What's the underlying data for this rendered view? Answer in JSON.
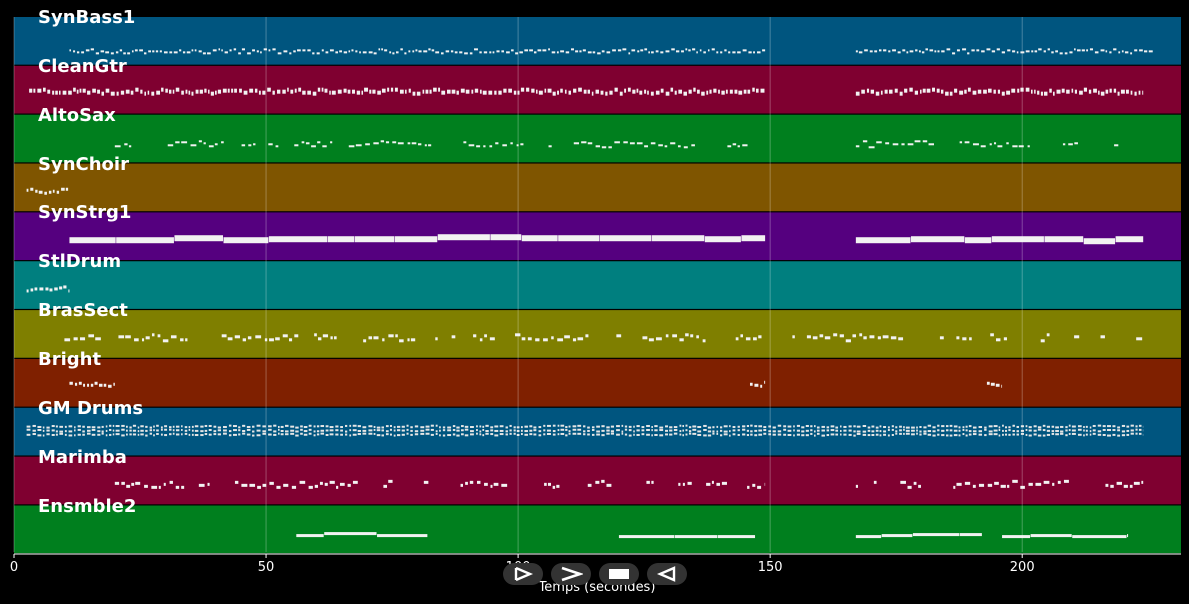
{
  "chart_data": {
    "type": "piano-roll",
    "xlabel": "Temps (secondes)",
    "xlim": [
      0,
      231.5
    ],
    "xticks": [
      0,
      50,
      100,
      150,
      200
    ],
    "grid": true,
    "tracks": [
      {
        "name": "SynBass1",
        "color": "#00557f",
        "segments": [
          [
            11,
            149
          ],
          [
            167,
            226
          ]
        ],
        "level": 0.3,
        "style": "dense",
        "height": 2
      },
      {
        "name": "CleanGtr",
        "color": "#7f0030",
        "segments": [
          [
            3,
            149
          ],
          [
            167,
            224
          ]
        ],
        "level": 0.5,
        "style": "dense",
        "height": 4
      },
      {
        "name": "AltoSax",
        "color": "#007f1e",
        "segments": [
          [
            20,
            146
          ],
          [
            167,
            221
          ]
        ],
        "level": 0.4,
        "style": "sparse",
        "height": 2
      },
      {
        "name": "SynChoir",
        "color": "#7f5500",
        "segments": [
          [
            2.5,
            11
          ]
        ],
        "level": 0.45,
        "style": "dense",
        "height": 3
      },
      {
        "name": "SynStrg1",
        "color": "#55007f",
        "segments": [
          [
            11,
            149
          ],
          [
            167,
            224
          ]
        ],
        "level": 0.5,
        "style": "solid",
        "height": 6
      },
      {
        "name": "StlDrum",
        "color": "#007f7f",
        "segments": [
          [
            2.5,
            11
          ]
        ],
        "level": 0.45,
        "style": "dense",
        "height": 3
      },
      {
        "name": "BrasSect",
        "color": "#7f7f00",
        "segments": [
          [
            10,
            224
          ]
        ],
        "level": 0.45,
        "style": "sparse",
        "height": 3
      },
      {
        "name": "Bright",
        "color": "#7f2000",
        "segments": [
          [
            11,
            20
          ],
          [
            146,
            149
          ],
          [
            193,
            196
          ]
        ],
        "level": 0.5,
        "style": "dense",
        "height": 3
      },
      {
        "name": "GM Drums",
        "color": "#00557f",
        "segments": [
          [
            2.5,
            224
          ]
        ],
        "level": 0.5,
        "style": "drums",
        "height": 2
      },
      {
        "name": "Marimba",
        "color": "#7f0030",
        "segments": [
          [
            20,
            149
          ],
          [
            167,
            224
          ]
        ],
        "level": 0.45,
        "style": "sparse",
        "height": 3
      },
      {
        "name": "Ensmble2",
        "color": "#007f1e",
        "segments": [
          [
            56,
            82
          ],
          [
            120,
            147
          ],
          [
            167,
            192
          ],
          [
            196,
            221
          ]
        ],
        "level": 0.4,
        "style": "solid",
        "height": 3
      }
    ]
  },
  "controls": {
    "icons": [
      "play-marker-icon",
      "play-icon",
      "stop-icon",
      "rewind-icon"
    ]
  }
}
